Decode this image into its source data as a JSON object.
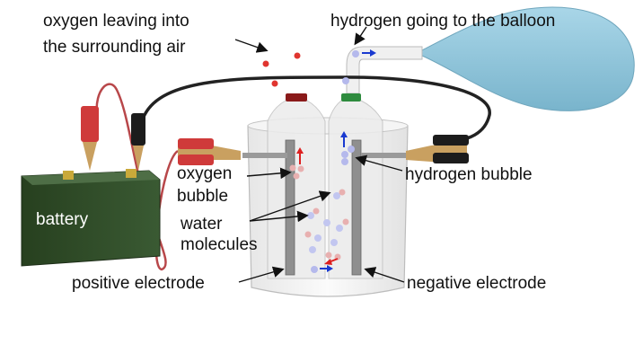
{
  "labels": {
    "oxygen_leaving_line1": "oxygen leaving into",
    "oxygen_leaving_line2": "the surrounding air",
    "hydrogen_to_balloon": "hydrogen going to the balloon",
    "battery": "battery",
    "oxygen_bubble_line1": "oxygen",
    "oxygen_bubble_line2": "bubble",
    "hydrogen_bubble": "hydrogen bubble",
    "water_line1": "water",
    "water_line2": "molecules",
    "positive_electrode": "positive electrode",
    "negative_electrode": "negative electrode"
  },
  "colors": {
    "battery": "#2f4a2a",
    "balloon": "#8fc6dc",
    "wire": "#222222",
    "positive_wire": "#b8474a",
    "oxygen_cap": "#8a1a1a",
    "hydrogen_cap": "#2e8b3e",
    "oxygen_arrow": "#dd2020",
    "hydrogen_arrow": "#1a3ad0",
    "oxygen_molecule": "#e0352f"
  }
}
